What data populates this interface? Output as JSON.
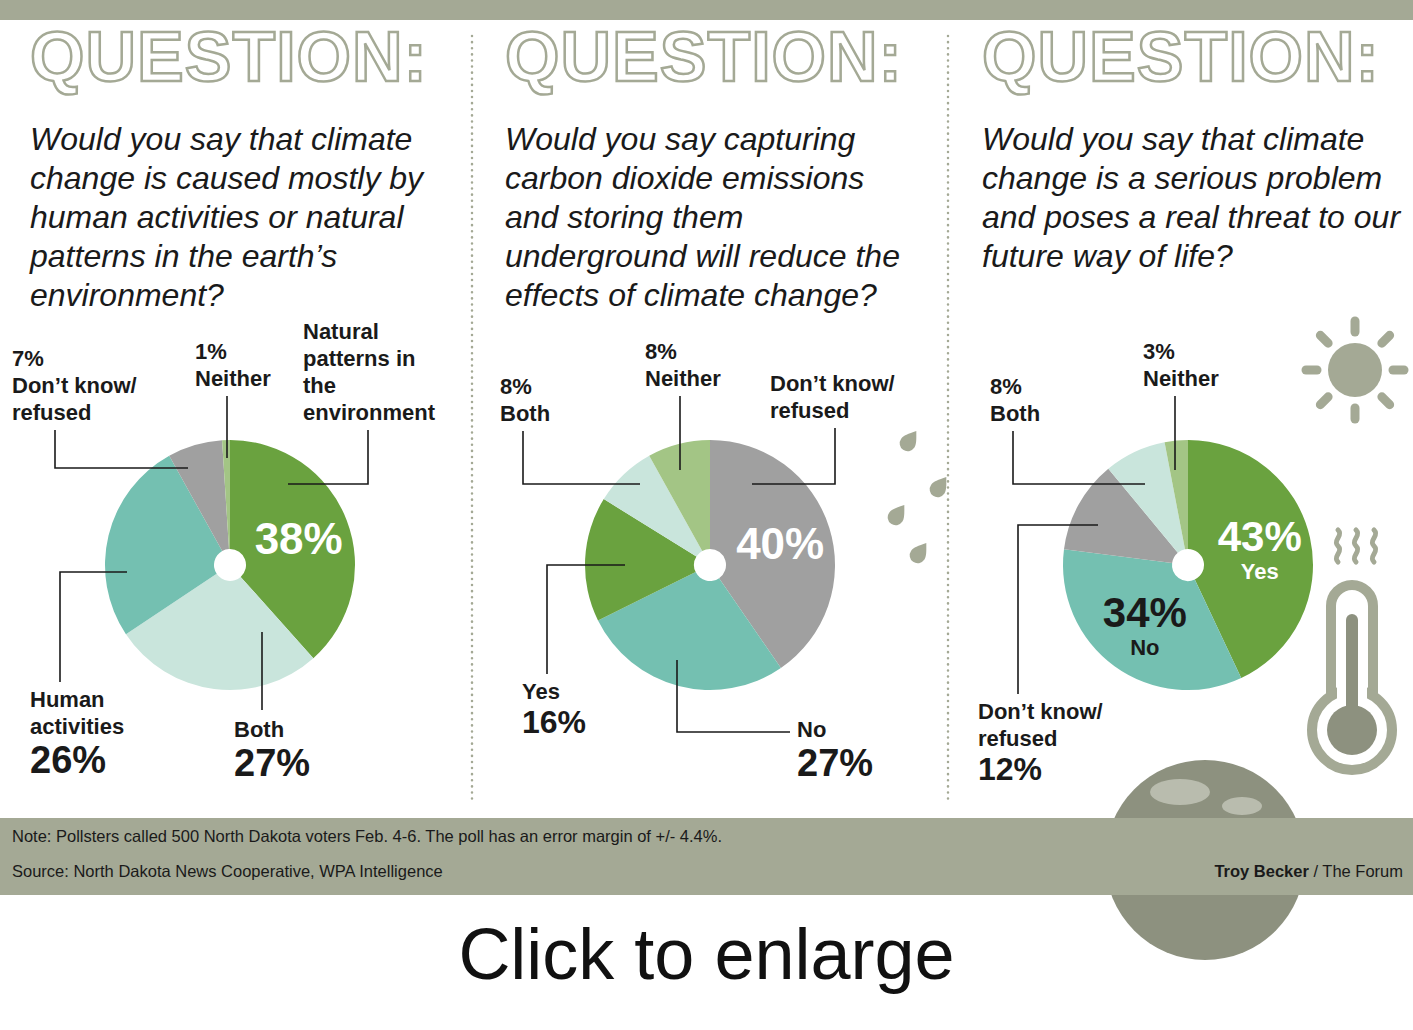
{
  "chart_data": [
    {
      "type": "pie",
      "heading": "QUESTION:",
      "title": "Would you say that climate change is caused mostly by human activities or natural patterns in the earth’s environment?",
      "categories": [
        "Natural patterns in the environment",
        "Both",
        "Human activities",
        "Don’t know/refused",
        "Neither"
      ],
      "values": [
        38,
        27,
        26,
        7,
        1
      ],
      "value_labels": [
        "38%",
        "27%",
        "26%",
        "7%",
        "1%"
      ],
      "colors": [
        "#6aa23f",
        "#c9e5dc",
        "#74c0b1",
        "#a0a0a0",
        "#a3c585"
      ],
      "data_labels": true
    },
    {
      "type": "pie",
      "heading": "QUESTION:",
      "title": "Would you say capturing carbon dioxide emissions and storing them underground will reduce the effects of climate change?",
      "categories": [
        "Don’t know/refused",
        "No",
        "Yes",
        "Both",
        "Neither"
      ],
      "values": [
        40,
        27,
        16,
        8,
        8
      ],
      "value_labels": [
        "40%",
        "27%",
        "16%",
        "8%",
        "8%"
      ],
      "colors": [
        "#a0a0a0",
        "#74c0b1",
        "#6aa23f",
        "#c9e5dc",
        "#a3c585"
      ],
      "data_labels": true
    },
    {
      "type": "pie",
      "heading": "QUESTION:",
      "title": "Would you say that climate change is a serious problem and poses a real threat to our future way of life?",
      "categories": [
        "Yes",
        "No",
        "Don’t know/refused",
        "Both",
        "Neither"
      ],
      "values": [
        43,
        34,
        12,
        8,
        3
      ],
      "value_labels": [
        "43%",
        "34%",
        "12%",
        "8%",
        "3%"
      ],
      "colors": [
        "#6aa23f",
        "#74c0b1",
        "#a0a0a0",
        "#c9e5dc",
        "#a3c585"
      ],
      "data_labels": true
    }
  ],
  "note": "Note: Pollsters called 500 North Dakota voters Feb. 4-6. The poll has an error margin of +/- 4.4%.",
  "source": "Source: North Dakota News Cooperative, WPA Intelligence",
  "credit": "Troy Becker / The Forum",
  "caption": "Click to enlarge"
}
